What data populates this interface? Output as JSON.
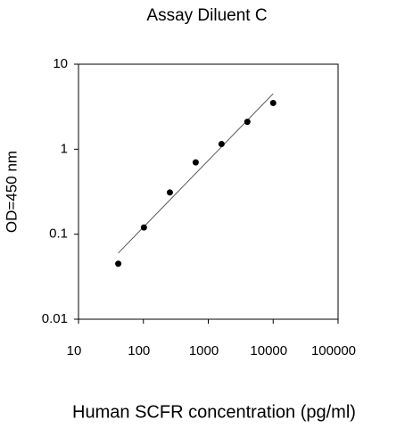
{
  "chart_data": {
    "type": "scatter",
    "title": "Assay Diluent C",
    "x_label": "Human SCFR concentration (pg/ml)",
    "y_label": "OD=450 nm",
    "x_scale": "log",
    "y_scale": "log",
    "xlim": [
      10,
      100000
    ],
    "xticks": [
      10,
      100,
      1000,
      10000,
      100000
    ],
    "ylim": [
      0.01,
      10
    ],
    "yticks": [
      0.01,
      0.1,
      1,
      10
    ],
    "color": "#000000",
    "x": [
      41,
      102,
      256,
      640,
      1600,
      4000,
      10000
    ],
    "values": [
      0.045,
      0.12,
      0.31,
      0.7,
      1.15,
      2.1,
      3.5
    ],
    "fit": {
      "color": "#555555",
      "x": [
        41,
        10000
      ],
      "values": [
        0.06,
        4.5
      ]
    }
  }
}
